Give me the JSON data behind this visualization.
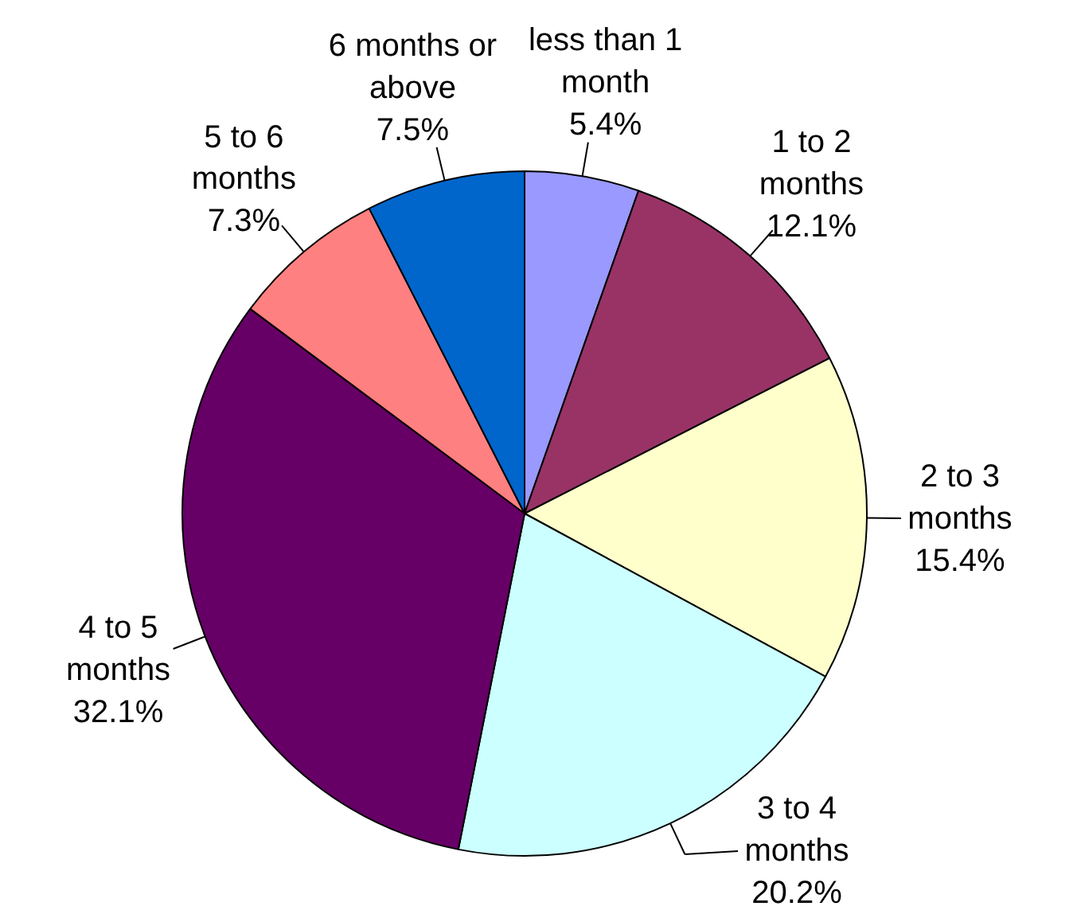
{
  "chart_data": {
    "type": "pie",
    "categories": [
      "less than 1 month",
      "1 to 2 months",
      "2 to 3 months",
      "3 to 4 months",
      "4 to 5 months",
      "5 to 6 months",
      "6 months or above"
    ],
    "values": [
      5.4,
      12.1,
      15.4,
      20.2,
      32.1,
      7.3,
      7.5
    ],
    "value_labels": [
      "5.4%",
      "12.1%",
      "15.4%",
      "20.2%",
      "32.1%",
      "7.3%",
      "7.5%"
    ],
    "colors": [
      "#9999ff",
      "#993366",
      "#ffffcc",
      "#ccffff",
      "#660066",
      "#ff8080",
      "#0066cc"
    ]
  }
}
